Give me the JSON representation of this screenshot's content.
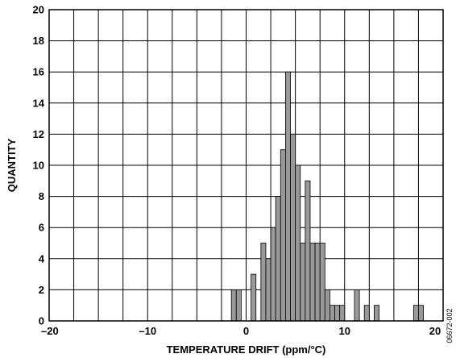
{
  "chart_data": {
    "type": "bar",
    "title": "",
    "xlabel": "TEMPERATURE DRIFT (ppm/°C)",
    "ylabel": "QUANTITY",
    "xlim": [
      -20,
      20
    ],
    "ylim": [
      0,
      20
    ],
    "x_ticks": [
      -20,
      -10,
      0,
      10,
      20
    ],
    "x_tick_labels": [
      "–20",
      "–10",
      "0",
      "10",
      "20"
    ],
    "y_ticks": [
      0,
      2,
      4,
      6,
      8,
      10,
      12,
      14,
      16,
      18,
      20
    ],
    "y_tick_labels": [
      "0",
      "2",
      "4",
      "6",
      "8",
      "10",
      "12",
      "14",
      "16",
      "18",
      "20"
    ],
    "grid": true,
    "bar_width": 0.5,
    "bar_color": "#999999",
    "x": [
      -1.25,
      -0.75,
      0.75,
      1.75,
      2.25,
      2.75,
      3.25,
      3.75,
      4.25,
      4.75,
      5.25,
      5.75,
      6.25,
      6.75,
      7.25,
      7.75,
      8.25,
      8.75,
      9.25,
      9.75,
      11.25,
      12.25,
      13.25,
      17.25,
      17.75
    ],
    "values": [
      2,
      2,
      3,
      5,
      4,
      6,
      8,
      11,
      16,
      12,
      10,
      5,
      9,
      5,
      5,
      5,
      2,
      1,
      1,
      1,
      2,
      1,
      1,
      1,
      1
    ]
  },
  "figure_id": "06672-002"
}
